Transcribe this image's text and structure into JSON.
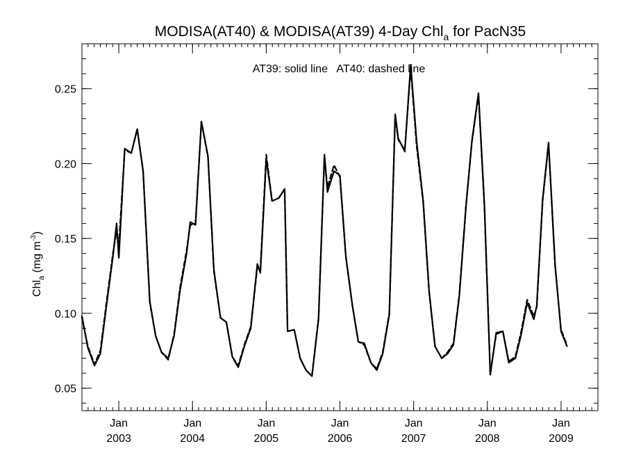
{
  "chart_data": {
    "type": "line",
    "title": "MODISA(AT40) & MODISA(AT39) 4-Day Chl",
    "title_subscript": "a",
    "title_suffix": " for PacN35",
    "ylabel": "Chl",
    "ylabel_subscript": "a",
    "ylabel_unit": " (mg m",
    "ylabel_unit_superscript": "-3",
    "ylabel_unit_close": ")",
    "annotation": "AT39: solid line   AT40: dashed line",
    "ylim": [
      0.035,
      0.28
    ],
    "xlim": [
      2002.5,
      2009.5
    ],
    "y_ticks": [
      {
        "value": 0.05,
        "label": "0.05"
      },
      {
        "value": 0.1,
        "label": "0.10"
      },
      {
        "value": 0.15,
        "label": "0.15"
      },
      {
        "value": 0.2,
        "label": "0.20"
      },
      {
        "value": 0.25,
        "label": "0.25"
      }
    ],
    "x_ticks": [
      {
        "value": 2003,
        "month": "Jan",
        "year": "2003"
      },
      {
        "value": 2004,
        "month": "Jan",
        "year": "2004"
      },
      {
        "value": 2005,
        "month": "Jan",
        "year": "2005"
      },
      {
        "value": 2006,
        "month": "Jan",
        "year": "2006"
      },
      {
        "value": 2007,
        "month": "Jan",
        "year": "2007"
      },
      {
        "value": 2008,
        "month": "Jan",
        "year": "2008"
      },
      {
        "value": 2009,
        "month": "Jan",
        "year": "2009"
      }
    ],
    "grid": false,
    "series": [
      {
        "name": "AT39",
        "style": "solid",
        "color": "#000000",
        "points": [
          [
            2002.5,
            0.098
          ],
          [
            2002.58,
            0.077
          ],
          [
            2002.67,
            0.065
          ],
          [
            2002.75,
            0.073
          ],
          [
            2002.83,
            0.104
          ],
          [
            2002.92,
            0.138
          ],
          [
            2002.97,
            0.16
          ],
          [
            2003.0,
            0.137
          ],
          [
            2003.08,
            0.21
          ],
          [
            2003.17,
            0.207
          ],
          [
            2003.25,
            0.223
          ],
          [
            2003.33,
            0.195
          ],
          [
            2003.42,
            0.108
          ],
          [
            2003.5,
            0.085
          ],
          [
            2003.58,
            0.074
          ],
          [
            2003.67,
            0.07
          ],
          [
            2003.75,
            0.085
          ],
          [
            2003.83,
            0.115
          ],
          [
            2003.92,
            0.14
          ],
          [
            2003.97,
            0.161
          ],
          [
            2004.04,
            0.159
          ],
          [
            2004.12,
            0.228
          ],
          [
            2004.21,
            0.205
          ],
          [
            2004.29,
            0.129
          ],
          [
            2004.38,
            0.097
          ],
          [
            2004.46,
            0.094
          ],
          [
            2004.54,
            0.071
          ],
          [
            2004.62,
            0.064
          ],
          [
            2004.71,
            0.079
          ],
          [
            2004.79,
            0.09
          ],
          [
            2004.88,
            0.133
          ],
          [
            2004.92,
            0.127
          ],
          [
            2005.0,
            0.203
          ],
          [
            2005.08,
            0.175
          ],
          [
            2005.17,
            0.177
          ],
          [
            2005.25,
            0.183
          ],
          [
            2005.29,
            0.088
          ],
          [
            2005.38,
            0.089
          ],
          [
            2005.46,
            0.07
          ],
          [
            2005.54,
            0.062
          ],
          [
            2005.62,
            0.058
          ],
          [
            2005.71,
            0.096
          ],
          [
            2005.79,
            0.206
          ],
          [
            2005.83,
            0.181
          ],
          [
            2005.92,
            0.195
          ],
          [
            2006.0,
            0.192
          ],
          [
            2006.08,
            0.138
          ],
          [
            2006.17,
            0.105
          ],
          [
            2006.25,
            0.081
          ],
          [
            2006.33,
            0.08
          ],
          [
            2006.42,
            0.067
          ],
          [
            2006.5,
            0.062
          ],
          [
            2006.58,
            0.073
          ],
          [
            2006.67,
            0.099
          ],
          [
            2006.75,
            0.233
          ],
          [
            2006.79,
            0.217
          ],
          [
            2006.88,
            0.208
          ],
          [
            2006.96,
            0.266
          ],
          [
            2007.04,
            0.215
          ],
          [
            2007.13,
            0.175
          ],
          [
            2007.21,
            0.115
          ],
          [
            2007.29,
            0.078
          ],
          [
            2007.38,
            0.07
          ],
          [
            2007.46,
            0.073
          ],
          [
            2007.54,
            0.079
          ],
          [
            2007.62,
            0.112
          ],
          [
            2007.71,
            0.171
          ],
          [
            2007.79,
            0.215
          ],
          [
            2007.88,
            0.247
          ],
          [
            2007.96,
            0.173
          ],
          [
            2008.04,
            0.059
          ],
          [
            2008.12,
            0.087
          ],
          [
            2008.21,
            0.088
          ],
          [
            2008.29,
            0.067
          ],
          [
            2008.38,
            0.07
          ],
          [
            2008.46,
            0.086
          ],
          [
            2008.54,
            0.107
          ],
          [
            2008.63,
            0.096
          ],
          [
            2008.67,
            0.105
          ],
          [
            2008.75,
            0.176
          ],
          [
            2008.83,
            0.214
          ],
          [
            2008.92,
            0.132
          ],
          [
            2009.0,
            0.088
          ],
          [
            2009.08,
            0.078
          ]
        ]
      },
      {
        "name": "AT40",
        "style": "dashed",
        "color": "#000000",
        "points": [
          [
            2002.5,
            0.097
          ],
          [
            2002.58,
            0.078
          ],
          [
            2002.67,
            0.066
          ],
          [
            2002.75,
            0.075
          ],
          [
            2002.83,
            0.106
          ],
          [
            2002.92,
            0.14
          ],
          [
            2002.97,
            0.155
          ],
          [
            2003.0,
            0.145
          ],
          [
            2003.08,
            0.209
          ],
          [
            2003.17,
            0.207
          ],
          [
            2003.25,
            0.223
          ],
          [
            2003.33,
            0.195
          ],
          [
            2003.42,
            0.107
          ],
          [
            2003.5,
            0.085
          ],
          [
            2003.58,
            0.074
          ],
          [
            2003.67,
            0.069
          ],
          [
            2003.75,
            0.086
          ],
          [
            2003.83,
            0.117
          ],
          [
            2003.92,
            0.142
          ],
          [
            2003.97,
            0.159
          ],
          [
            2004.04,
            0.16
          ],
          [
            2004.12,
            0.228
          ],
          [
            2004.21,
            0.204
          ],
          [
            2004.29,
            0.128
          ],
          [
            2004.38,
            0.097
          ],
          [
            2004.46,
            0.094
          ],
          [
            2004.54,
            0.071
          ],
          [
            2004.62,
            0.065
          ],
          [
            2004.71,
            0.08
          ],
          [
            2004.79,
            0.091
          ],
          [
            2004.88,
            0.131
          ],
          [
            2004.92,
            0.129
          ],
          [
            2005.0,
            0.206
          ],
          [
            2005.08,
            0.175
          ],
          [
            2005.17,
            0.177
          ],
          [
            2005.25,
            0.183
          ],
          [
            2005.29,
            0.088
          ],
          [
            2005.38,
            0.089
          ],
          [
            2005.46,
            0.07
          ],
          [
            2005.54,
            0.062
          ],
          [
            2005.62,
            0.058
          ],
          [
            2005.71,
            0.097
          ],
          [
            2005.79,
            0.205
          ],
          [
            2005.83,
            0.184
          ],
          [
            2005.92,
            0.199
          ],
          [
            2006.0,
            0.191
          ],
          [
            2006.08,
            0.138
          ],
          [
            2006.17,
            0.105
          ],
          [
            2006.25,
            0.081
          ],
          [
            2006.33,
            0.079
          ],
          [
            2006.42,
            0.067
          ],
          [
            2006.5,
            0.063
          ],
          [
            2006.58,
            0.074
          ],
          [
            2006.67,
            0.1
          ],
          [
            2006.75,
            0.232
          ],
          [
            2006.79,
            0.216
          ],
          [
            2006.88,
            0.209
          ],
          [
            2006.96,
            0.264
          ],
          [
            2007.04,
            0.212
          ],
          [
            2007.13,
            0.174
          ],
          [
            2007.21,
            0.114
          ],
          [
            2007.29,
            0.078
          ],
          [
            2007.38,
            0.07
          ],
          [
            2007.46,
            0.074
          ],
          [
            2007.54,
            0.08
          ],
          [
            2007.62,
            0.113
          ],
          [
            2007.71,
            0.172
          ],
          [
            2007.79,
            0.214
          ],
          [
            2007.88,
            0.246
          ],
          [
            2007.96,
            0.172
          ],
          [
            2008.04,
            0.06
          ],
          [
            2008.12,
            0.086
          ],
          [
            2008.21,
            0.088
          ],
          [
            2008.29,
            0.068
          ],
          [
            2008.38,
            0.071
          ],
          [
            2008.46,
            0.088
          ],
          [
            2008.54,
            0.109
          ],
          [
            2008.63,
            0.098
          ],
          [
            2008.67,
            0.104
          ],
          [
            2008.75,
            0.175
          ],
          [
            2008.83,
            0.213
          ],
          [
            2008.92,
            0.131
          ],
          [
            2009.0,
            0.089
          ],
          [
            2009.08,
            0.079
          ]
        ]
      }
    ]
  }
}
